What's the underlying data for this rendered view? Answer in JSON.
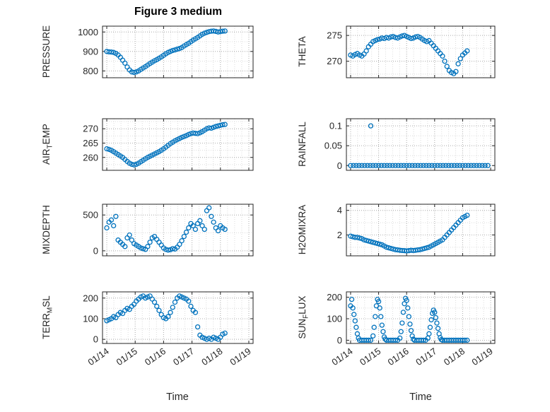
{
  "figure_title": "Figure 3 medium",
  "x_axis": {
    "label": "Time",
    "tick_labels": [
      "01/14",
      "01/15",
      "01/16",
      "01/17",
      "01/18",
      "01/19"
    ],
    "tick_values": [
      14,
      15,
      16,
      17,
      18,
      19
    ],
    "range": [
      13.85,
      19.15
    ]
  },
  "style": {
    "marker_color": "#0072BD",
    "axis_color": "#262626",
    "major_grid_color": "#b0b0b0",
    "minor_grid_color": "#dcdcdc",
    "background": "#ffffff"
  },
  "x_common": [
    14.0,
    14.08,
    14.16,
    14.24,
    14.32,
    14.4,
    14.48,
    14.56,
    14.64,
    14.72,
    14.8,
    14.88,
    14.96,
    15.04,
    15.12,
    15.2,
    15.28,
    15.36,
    15.44,
    15.52,
    15.6,
    15.68,
    15.76,
    15.84,
    15.92,
    16.0,
    16.08,
    16.16,
    16.24,
    16.32,
    16.4,
    16.48,
    16.56,
    16.64,
    16.72,
    16.8,
    16.88,
    16.96,
    17.04,
    17.12,
    17.2,
    17.28,
    17.36,
    17.44,
    17.52,
    17.6,
    17.68,
    17.76,
    17.84,
    17.92,
    18.0,
    18.08,
    18.16
  ],
  "chart_data": [
    {
      "id": "pressure",
      "type": "scatter",
      "ylabel": {
        "pre": "PRESSURE",
        "sub": "",
        "post": ""
      },
      "ytick_values": [
        800,
        900,
        1000
      ],
      "ytick_labels": [
        "800",
        "900",
        "1000"
      ],
      "ylim": [
        765,
        1030
      ],
      "x": "common",
      "y": [
        900,
        898,
        897,
        895,
        890,
        882,
        870,
        855,
        840,
        820,
        805,
        795,
        792,
        795,
        800,
        808,
        815,
        822,
        830,
        838,
        845,
        852,
        858,
        865,
        872,
        880,
        888,
        895,
        900,
        905,
        908,
        912,
        915,
        920,
        928,
        935,
        942,
        950,
        958,
        965,
        972,
        980,
        988,
        994,
        998,
        1002,
        1004,
        1005,
        1003,
        1000,
        1002,
        1004,
        1005
      ]
    },
    {
      "id": "theta",
      "type": "scatter",
      "ylabel": {
        "pre": "THETA",
        "sub": "",
        "post": ""
      },
      "ytick_values": [
        270,
        275
      ],
      "ytick_labels": [
        "270",
        "275"
      ],
      "ylim": [
        266.8,
        276.8
      ],
      "x": "common",
      "y": [
        271.2,
        271.0,
        271.3,
        271.5,
        271.2,
        271.0,
        271.4,
        272.0,
        272.8,
        273.3,
        273.8,
        274.0,
        274.2,
        274.3,
        274.5,
        274.4,
        274.6,
        274.5,
        274.7,
        274.8,
        274.6,
        274.5,
        274.7,
        274.9,
        275.0,
        274.8,
        274.6,
        274.4,
        274.5,
        274.7,
        274.8,
        274.6,
        274.3,
        274.0,
        273.8,
        274.0,
        273.5,
        273.0,
        272.5,
        272.0,
        271.5,
        271.0,
        270.0,
        269.0,
        268.2,
        267.8,
        267.6,
        268.0,
        269.5,
        270.5,
        271.2,
        271.6,
        272.0
      ]
    },
    {
      "id": "air-temp",
      "type": "scatter",
      "ylabel": {
        "pre": "AIR",
        "sub": "T",
        "post": "EMP"
      },
      "ytick_values": [
        260,
        265,
        270
      ],
      "ytick_labels": [
        "260",
        "265",
        "270"
      ],
      "ylim": [
        255.5,
        273.5
      ],
      "x": "common",
      "y": [
        263.0,
        262.8,
        262.5,
        262.0,
        261.5,
        261.0,
        260.5,
        260.0,
        259.3,
        258.6,
        258.0,
        257.6,
        257.4,
        257.6,
        258.0,
        258.5,
        259.0,
        259.5,
        260.0,
        260.4,
        260.8,
        261.2,
        261.6,
        262.0,
        262.5,
        263.0,
        263.6,
        264.2,
        264.8,
        265.3,
        265.8,
        266.2,
        266.6,
        267.0,
        267.3,
        267.6,
        268.0,
        268.3,
        268.5,
        268.4,
        268.3,
        268.6,
        269.0,
        269.5,
        270.0,
        270.3,
        270.2,
        270.5,
        270.8,
        271.0,
        271.2,
        271.4,
        271.5
      ]
    },
    {
      "id": "rainfall",
      "type": "scatter",
      "ylabel": {
        "pre": "RAINFALL",
        "sub": "",
        "post": ""
      },
      "ytick_values": [
        0,
        0.05,
        0.1
      ],
      "ytick_labels": [
        "0",
        "0.05",
        "0.1"
      ],
      "ylim": [
        -0.012,
        0.118
      ],
      "x": [
        14.0,
        14.1,
        14.2,
        14.3,
        14.4,
        14.5,
        14.6,
        14.7,
        14.8,
        14.9,
        15.0,
        15.1,
        15.2,
        15.3,
        15.4,
        15.5,
        15.6,
        15.7,
        15.8,
        15.9,
        16.0,
        16.1,
        16.2,
        16.3,
        16.4,
        16.5,
        16.6,
        16.7,
        16.8,
        16.9,
        17.0,
        17.1,
        17.2,
        17.3,
        17.4,
        17.5,
        17.6,
        17.7,
        17.8,
        17.9,
        18.0,
        18.1,
        18.2,
        18.3,
        18.4,
        18.5,
        18.6,
        18.7,
        18.8,
        18.9,
        14.72
      ],
      "y": [
        0,
        0,
        0,
        0,
        0,
        0,
        0,
        0,
        0,
        0,
        0,
        0,
        0,
        0,
        0,
        0,
        0,
        0,
        0,
        0,
        0,
        0,
        0,
        0,
        0,
        0,
        0,
        0,
        0,
        0,
        0,
        0,
        0,
        0,
        0,
        0,
        0,
        0,
        0,
        0,
        0,
        0,
        0,
        0,
        0,
        0,
        0,
        0,
        0,
        0,
        0.1
      ]
    },
    {
      "id": "mixdepth",
      "type": "scatter",
      "ylabel": {
        "pre": "MIXDEPTH",
        "sub": "",
        "post": ""
      },
      "ytick_values": [
        0,
        500
      ],
      "ytick_labels": [
        "0",
        "500"
      ],
      "ylim": [
        -70,
        650
      ],
      "x": "common",
      "y": [
        320,
        400,
        430,
        350,
        480,
        150,
        120,
        90,
        60,
        180,
        220,
        150,
        100,
        80,
        60,
        40,
        30,
        20,
        60,
        120,
        180,
        200,
        160,
        120,
        80,
        40,
        20,
        10,
        15,
        30,
        25,
        50,
        90,
        140,
        200,
        260,
        320,
        380,
        350,
        300,
        380,
        420,
        350,
        300,
        560,
        600,
        480,
        400,
        320,
        280,
        350,
        320,
        300
      ]
    },
    {
      "id": "h2omixra",
      "type": "scatter",
      "ylabel": {
        "pre": "H2OMIXRA",
        "sub": "",
        "post": ""
      },
      "ytick_values": [
        2,
        4
      ],
      "ytick_labels": [
        "2",
        "4"
      ],
      "ylim": [
        0.3,
        4.5
      ],
      "x": "common",
      "y": [
        1.9,
        1.85,
        1.8,
        1.8,
        1.75,
        1.7,
        1.6,
        1.55,
        1.5,
        1.45,
        1.4,
        1.35,
        1.3,
        1.25,
        1.2,
        1.1,
        1.0,
        0.95,
        0.9,
        0.85,
        0.8,
        0.78,
        0.75,
        0.73,
        0.72,
        0.7,
        0.72,
        0.75,
        0.73,
        0.75,
        0.78,
        0.8,
        0.85,
        0.9,
        0.95,
        1.0,
        1.1,
        1.2,
        1.3,
        1.4,
        1.5,
        1.6,
        1.8,
        2.0,
        2.2,
        2.4,
        2.6,
        2.8,
        3.0,
        3.2,
        3.4,
        3.5,
        3.6
      ]
    },
    {
      "id": "terr-msl",
      "type": "scatter",
      "ylabel": {
        "pre": "TERR",
        "sub": "M",
        "post": "SL"
      },
      "ytick_values": [
        0,
        100,
        200
      ],
      "ytick_labels": [
        "0",
        "100",
        "200"
      ],
      "ylim": [
        -20,
        230
      ],
      "x": "common",
      "y": [
        90,
        95,
        100,
        110,
        105,
        120,
        130,
        125,
        140,
        150,
        145,
        160,
        170,
        185,
        195,
        205,
        210,
        200,
        205,
        210,
        195,
        180,
        160,
        140,
        120,
        105,
        100,
        110,
        130,
        155,
        180,
        200,
        210,
        205,
        200,
        195,
        185,
        160,
        140,
        130,
        60,
        20,
        10,
        5,
        0,
        5,
        0,
        10,
        5,
        0,
        10,
        25,
        30
      ]
    },
    {
      "id": "sun-flux",
      "type": "scatter",
      "ylabel": {
        "pre": "SUN",
        "sub": "F",
        "post": "LUX"
      },
      "ytick_values": [
        0,
        100,
        200
      ],
      "ytick_labels": [
        "0",
        "100",
        "200"
      ],
      "ylim": [
        -15,
        225
      ],
      "x": [
        14.0,
        14.04,
        14.08,
        14.12,
        14.16,
        14.2,
        14.24,
        14.28,
        14.32,
        14.4,
        14.48,
        14.56,
        14.64,
        14.72,
        14.8,
        14.84,
        14.88,
        14.92,
        14.96,
        15.0,
        15.04,
        15.08,
        15.12,
        15.16,
        15.2,
        15.24,
        15.28,
        15.36,
        15.44,
        15.52,
        15.6,
        15.68,
        15.76,
        15.8,
        15.84,
        15.88,
        15.92,
        15.96,
        16.0,
        16.04,
        16.08,
        16.12,
        16.16,
        16.2,
        16.24,
        16.28,
        16.36,
        16.44,
        16.52,
        16.6,
        16.68,
        16.76,
        16.8,
        16.84,
        16.88,
        16.92,
        16.96,
        17.0,
        17.04,
        17.08,
        17.12,
        17.16,
        17.2,
        17.24,
        17.28,
        17.36,
        17.44,
        17.52,
        17.6,
        17.68,
        17.76,
        17.84,
        17.92,
        18.0,
        18.08,
        18.16
      ],
      "y": [
        160,
        190,
        150,
        120,
        90,
        60,
        30,
        10,
        0,
        0,
        0,
        0,
        0,
        0,
        20,
        60,
        110,
        160,
        190,
        180,
        150,
        110,
        70,
        40,
        15,
        5,
        0,
        0,
        0,
        0,
        0,
        0,
        10,
        40,
        80,
        130,
        170,
        195,
        185,
        150,
        110,
        75,
        45,
        20,
        5,
        0,
        0,
        0,
        0,
        0,
        0,
        10,
        30,
        60,
        95,
        125,
        140,
        130,
        105,
        80,
        55,
        30,
        12,
        3,
        0,
        0,
        0,
        0,
        0,
        0,
        0,
        0,
        0,
        0,
        0,
        0
      ]
    }
  ]
}
